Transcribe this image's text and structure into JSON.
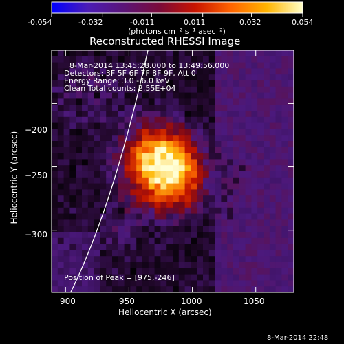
{
  "colorbar": {
    "ticks": [
      "-0.054",
      "-0.032",
      "-0.011",
      "0.011",
      "0.032",
      "0.054"
    ],
    "tick_values": [
      -0.054,
      -0.032,
      -0.011,
      0.011,
      0.032,
      0.054
    ],
    "units_label": "(photons cm⁻² s⁻¹ asec⁻²)",
    "colors": [
      "#0000ff",
      "#4b1cb6",
      "#5a1478",
      "#7a0a3a",
      "#c81400",
      "#ff6400",
      "#ffb400",
      "#ffffc8"
    ]
  },
  "image": {
    "title": "Reconstructed RHESSI Image",
    "info_lines": [
      "8-Mar-2014 13:45:28.000 to 13:49:56.000",
      "Detectors: 3F 5F 6F 7F 8F 9F, Att 0",
      "Energy Range: 3.0 - 6.0 keV",
      "Clean     Total counts: 2.55E+04"
    ],
    "peak_label": "Position of Peak = [975,-246]",
    "x_axis_label": "Heliocentric X (arcsec)",
    "y_axis_label": "Heliocentric Y (arcsec)",
    "x_range": [
      889,
      1080
    ],
    "y_range": [
      -349,
      -158
    ],
    "x_ticks": [
      {
        "value": 900,
        "label": "900"
      },
      {
        "value": 950,
        "label": "950"
      },
      {
        "value": 1000,
        "label": "1000"
      },
      {
        "value": 1050,
        "label": "1050"
      }
    ],
    "y_ticks": [
      {
        "value": -200,
        "label": "−200"
      },
      {
        "value": -250,
        "label": "−250"
      },
      {
        "value": -300,
        "label": "−300"
      }
    ],
    "peak_position": [
      975,
      -246
    ],
    "limb_line": [
      [
        904,
        -349
      ],
      [
        938,
        -280
      ],
      [
        965,
        -158
      ]
    ]
  },
  "footer": {
    "timestamp": "8-Mar-2014 22:48"
  }
}
